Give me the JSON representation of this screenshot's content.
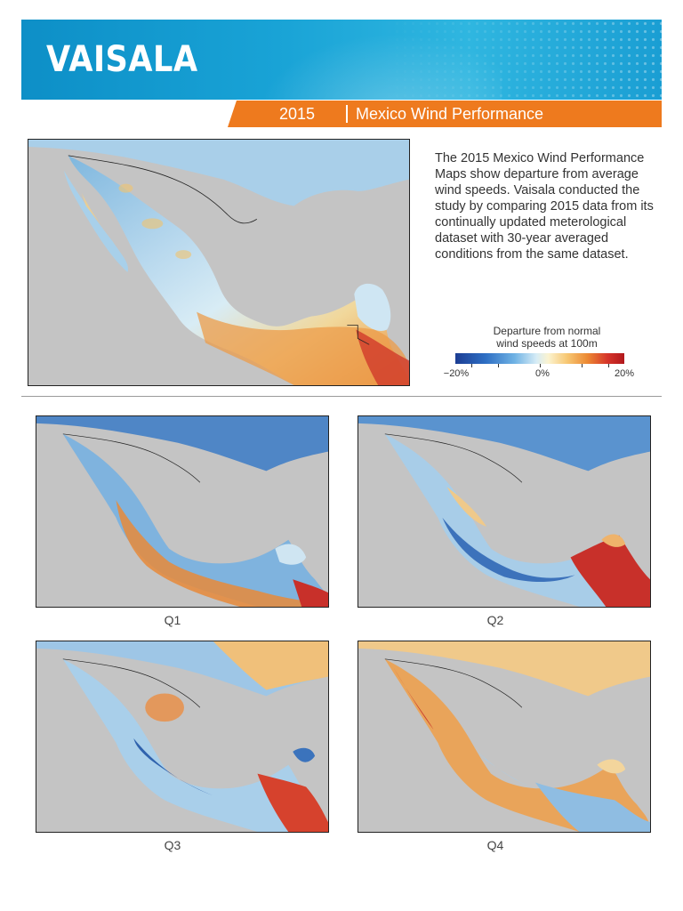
{
  "header": {
    "logo_text": "VAISALA",
    "year": "2015",
    "title": "Mexico Wind Performance",
    "banner_color": "#1a9ed3",
    "accent_color": "#ee7a1e"
  },
  "description": "The 2015 Mexico Wind Performance Maps show departure from average wind speeds. Vaisala conducted the study by comparing 2015 data from its continually updated meterological dataset with 30-year averaged conditions from the same dataset.",
  "legend": {
    "title": "Departure from normal\nwind speeds at 100m",
    "min_label": "−20%",
    "mid_label": "0%",
    "max_label": "20%",
    "colors": [
      "#1c3d93",
      "#6fb2e4",
      "#fbf3d0",
      "#ec8a34",
      "#b1181d"
    ]
  },
  "maps": {
    "annual": {
      "label": ""
    },
    "quarters": [
      {
        "label": "Q1"
      },
      {
        "label": "Q2"
      },
      {
        "label": "Q3"
      },
      {
        "label": "Q4"
      }
    ]
  }
}
